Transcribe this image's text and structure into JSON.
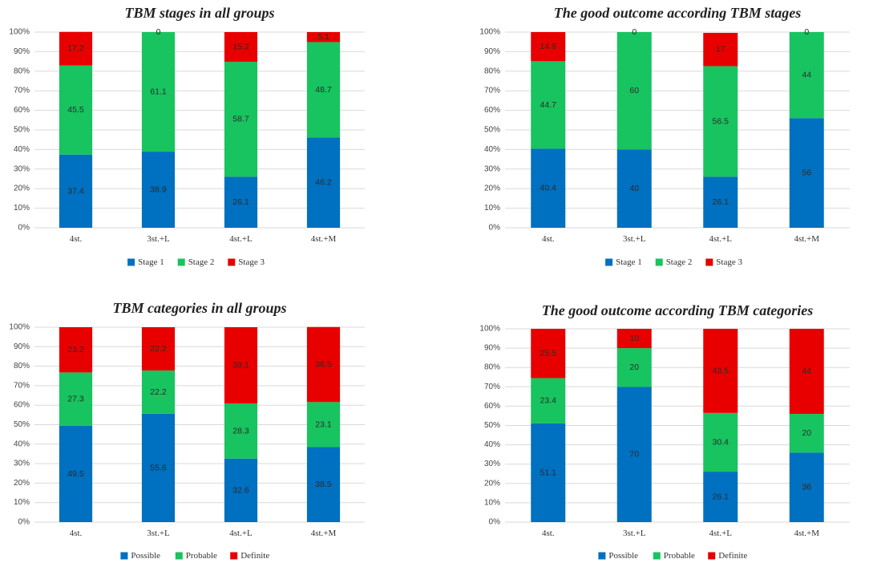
{
  "chart_data": [
    {
      "type": "bar",
      "stacked": true,
      "title": "TBM stages in all groups",
      "categories": [
        "4st.",
        "3st.+L",
        "4st.+L",
        "4st.+M"
      ],
      "series": [
        {
          "name": "Stage 1",
          "color": "#0070c0",
          "values": [
            37.4,
            38.9,
            26.1,
            46.2
          ],
          "labels": [
            "37.4",
            "38.9",
            "26.1",
            "46.2"
          ]
        },
        {
          "name": "Stage 2",
          "color": "#17c45f",
          "values": [
            45.5,
            61.1,
            58.7,
            48.7
          ],
          "labels": [
            "45.5",
            "61.1",
            "58.7",
            "48.7"
          ]
        },
        {
          "name": "Stage 3",
          "color": "#e80000",
          "values": [
            17.2,
            0,
            15.2,
            5.1
          ],
          "labels": [
            "17.2",
            "0",
            "15.2",
            "5.1"
          ]
        }
      ],
      "yticks": [
        "0%",
        "10%",
        "20%",
        "30%",
        "40%",
        "50%",
        "60%",
        "70%",
        "80%",
        "90%",
        "100%"
      ],
      "ylim": [
        0,
        100
      ],
      "ylabel": "",
      "xlabel": "",
      "legend_position": "bottom"
    },
    {
      "type": "bar",
      "stacked": true,
      "title": "The good outcome according TBM stages",
      "categories": [
        "4st.",
        "3st.+L",
        "4st.+L",
        "4st.+M"
      ],
      "series": [
        {
          "name": "Stage 1",
          "color": "#0070c0",
          "values": [
            40.4,
            40,
            26.1,
            56
          ],
          "labels": [
            "40.4",
            "40",
            "26.1",
            "56"
          ]
        },
        {
          "name": "Stage 2",
          "color": "#17c45f",
          "values": [
            44.7,
            60,
            56.5,
            44
          ],
          "labels": [
            "44.7",
            "60",
            "56.5",
            "44"
          ]
        },
        {
          "name": "Stage 3",
          "color": "#e80000",
          "values": [
            14.9,
            0,
            17,
            0
          ],
          "labels": [
            "14.9",
            "0",
            "17",
            "0"
          ]
        }
      ],
      "yticks": [
        "0%",
        "10%",
        "20%",
        "30%",
        "40%",
        "50%",
        "60%",
        "70%",
        "80%",
        "90%",
        "100%"
      ],
      "ylim": [
        0,
        100
      ],
      "ylabel": "",
      "xlabel": "",
      "legend_position": "bottom"
    },
    {
      "type": "bar",
      "stacked": true,
      "title": "TBM categories in all groups",
      "categories": [
        "4st.",
        "3st.+L",
        "4st.+L",
        "4st.+M"
      ],
      "series": [
        {
          "name": "Possible",
          "color": "#0070c0",
          "values": [
            49.5,
            55.6,
            32.6,
            38.5
          ],
          "labels": [
            "49.5",
            "55.6",
            "32.6",
            "38.5"
          ]
        },
        {
          "name": "Probable",
          "color": "#17c45f",
          "values": [
            27.3,
            22.2,
            28.3,
            23.1
          ],
          "labels": [
            "27.3",
            "22.2",
            "28.3",
            "23.1"
          ]
        },
        {
          "name": "Definite",
          "color": "#e80000",
          "values": [
            23.2,
            22.2,
            39.1,
            38.5
          ],
          "labels": [
            "23.2",
            "22.2",
            "39.1",
            "38.5"
          ]
        }
      ],
      "yticks": [
        "0%",
        "10%",
        "20%",
        "30%",
        "40%",
        "50%",
        "60%",
        "70%",
        "80%",
        "90%",
        "100%"
      ],
      "ylim": [
        0,
        100
      ],
      "ylabel": "",
      "xlabel": "",
      "legend_position": "bottom"
    },
    {
      "type": "bar",
      "stacked": true,
      "title": "The good outcome according TBM categories",
      "categories": [
        "4st.",
        "3st.+L",
        "4st.+L",
        "4st.+M"
      ],
      "series": [
        {
          "name": "Possible",
          "color": "#0070c0",
          "values": [
            51.1,
            70,
            26.1,
            36
          ],
          "labels": [
            "51.1",
            "70",
            "26.1",
            "36"
          ]
        },
        {
          "name": "Probable",
          "color": "#17c45f",
          "values": [
            23.4,
            20,
            30.4,
            20
          ],
          "labels": [
            "23.4",
            "20",
            "30.4",
            "20"
          ]
        },
        {
          "name": "Definite",
          "color": "#e80000",
          "values": [
            25.5,
            10,
            43.5,
            44
          ],
          "labels": [
            "25.5",
            "10",
            "43.5",
            "44"
          ]
        }
      ],
      "yticks": [
        "0%",
        "10%",
        "20%",
        "30%",
        "40%",
        "50%",
        "60%",
        "70%",
        "80%",
        "90%",
        "100%"
      ],
      "ylim": [
        0,
        100
      ],
      "ylabel": "",
      "xlabel": "",
      "legend_position": "bottom"
    }
  ]
}
